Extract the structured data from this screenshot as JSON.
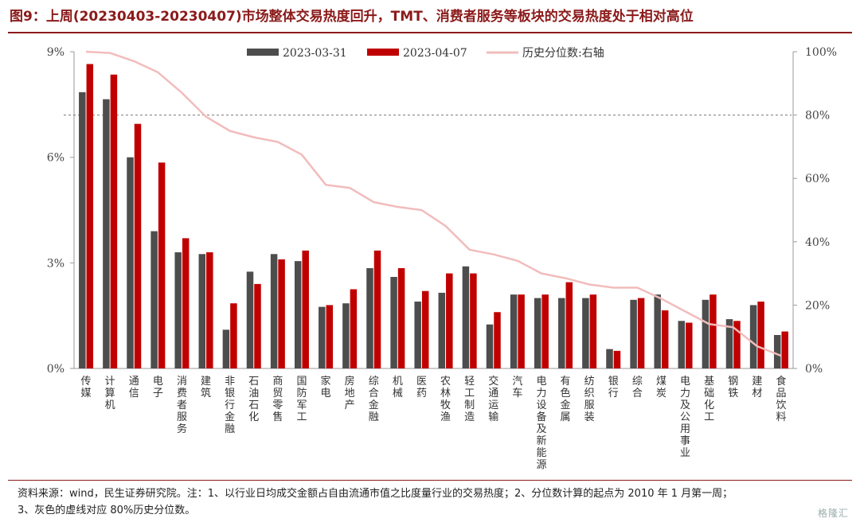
{
  "title": "图9：上周(20230403-20230407)市场整体交易热度回升，TMT、消费者服务等板块的交易热度处于相对高位",
  "footnote": [
    "资料来源：wind，民生证券研究院。注：1、以行业日均成交金额占自由流通市值之比度量行业的交易热度；2、分位数计算的起点为 2010 年 1 月第一周；",
    "3、灰色的虚线对应 80%历史分位数。"
  ],
  "watermark": "格隆汇",
  "chart_data": {
    "type": "bar",
    "categories": [
      "传媒",
      "计算机",
      "通信",
      "电子",
      "消费者服务",
      "建筑",
      "非银行金融",
      "石油石化",
      "商贸零售",
      "国防军工",
      "家电",
      "房地产",
      "综合金融",
      "机械",
      "医药",
      "农林牧渔",
      "轻工制造",
      "交通运输",
      "汽车",
      "电力设备及新能源",
      "有色金属",
      "纺织服装",
      "银行",
      "综合",
      "煤炭",
      "电力及公用事业",
      "基础化工",
      "钢铁",
      "建材",
      "食品饮料"
    ],
    "series": [
      {
        "name": "2023-03-31",
        "axis": "left",
        "color": "#4d4d4d",
        "values": [
          7.85,
          7.65,
          6.0,
          3.9,
          3.3,
          3.25,
          1.1,
          2.75,
          3.25,
          3.05,
          1.75,
          1.85,
          2.85,
          2.6,
          1.9,
          2.15,
          2.9,
          1.25,
          2.1,
          2.0,
          2.0,
          2.0,
          0.55,
          1.95,
          2.1,
          1.35,
          1.95,
          1.4,
          1.8,
          0.95
        ]
      },
      {
        "name": "2023-04-07",
        "axis": "left",
        "color": "#c00000",
        "values": [
          8.65,
          8.35,
          6.95,
          5.85,
          3.7,
          3.3,
          1.85,
          2.4,
          3.1,
          3.35,
          1.8,
          2.25,
          3.35,
          2.85,
          2.2,
          2.7,
          2.7,
          1.6,
          2.1,
          2.1,
          2.45,
          2.1,
          0.5,
          2.0,
          1.65,
          1.3,
          2.1,
          1.35,
          1.9,
          1.05
        ]
      },
      {
        "name": "历史分位数:右轴",
        "axis": "right",
        "type": "line",
        "color": "#f2bcbc",
        "values": [
          100,
          99.6,
          97,
          93.5,
          87,
          79.5,
          75,
          73,
          71.5,
          67.5,
          58,
          57,
          52.5,
          51,
          50,
          45,
          37.5,
          36,
          34,
          30,
          28.5,
          26.5,
          25.5,
          25.5,
          22,
          18,
          14,
          13,
          7,
          4
        ]
      }
    ],
    "left_axis": {
      "min": 0,
      "max": 9,
      "ticks": [
        "0%",
        "3%",
        "6%",
        "9%"
      ],
      "tick_values": [
        0,
        3,
        6,
        9
      ]
    },
    "right_axis": {
      "min": 0,
      "max": 100,
      "ticks": [
        "0%",
        "20%",
        "40%",
        "60%",
        "80%",
        "100%"
      ],
      "tick_values": [
        0,
        20,
        40,
        60,
        80,
        100
      ]
    },
    "reference_line": {
      "value": 80,
      "axis": "right",
      "style": "dashed",
      "color": "#777777"
    },
    "legend": {
      "placement": "top-center",
      "labels": [
        "2023-03-31",
        "2023-04-07",
        "历史分位数:右轴"
      ]
    },
    "grid": false
  }
}
